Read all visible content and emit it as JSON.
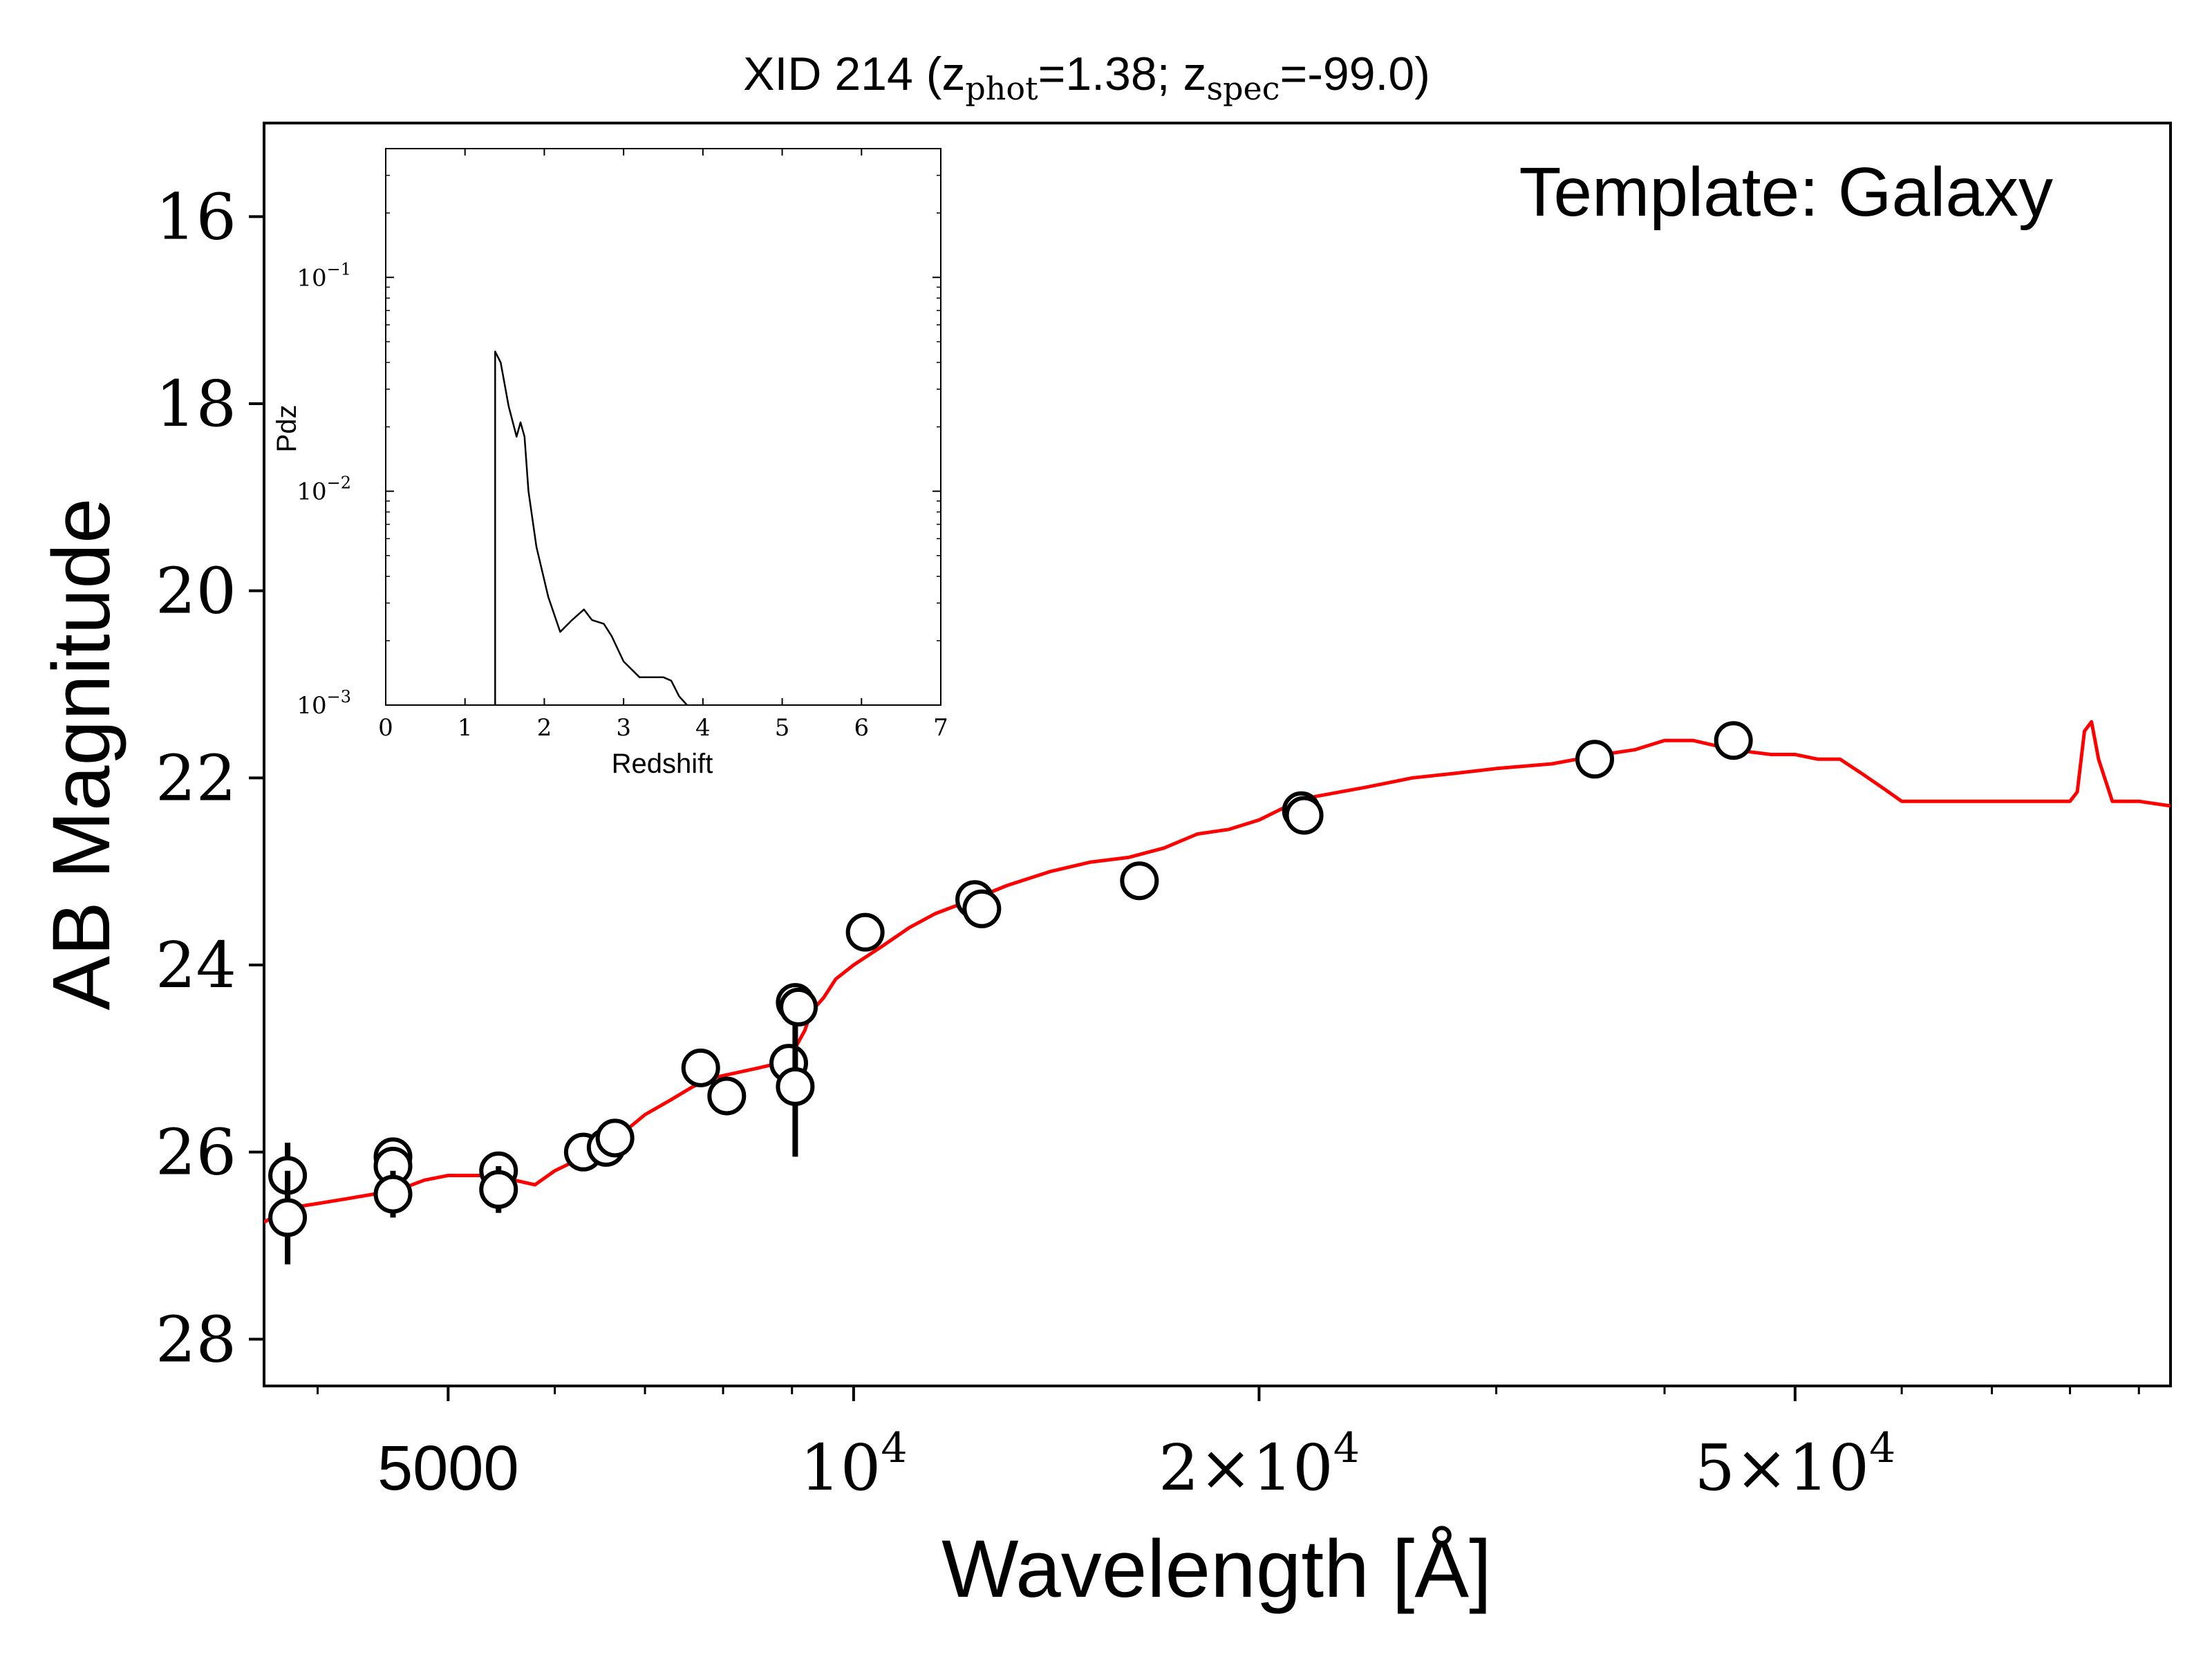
{
  "chart_data": [
    {
      "type": "line+scatter",
      "title": {
        "prefix": "XID 214 (z",
        "phot_sub": "phot",
        "phot_value": "=1.38; z",
        "spec_sub": "spec",
        "spec_value": "=-99.0)"
      },
      "xlabel": "Wavelength [Å]",
      "ylabel": "AB Magnitude",
      "annotation": "Template: Galaxy",
      "x_scale": "log",
      "xlim": [
        3650,
        95000
      ],
      "ylim": [
        28.5,
        15.0
      ],
      "y_inverted": true,
      "x_ticks": [
        {
          "value": 5000,
          "base": "5000",
          "sup": ""
        },
        {
          "value": 10000,
          "base": "10",
          "sup": "4"
        },
        {
          "value": 20000,
          "base": "2×10",
          "sup": "4"
        },
        {
          "value": 50000,
          "base": "5×10",
          "sup": "4"
        }
      ],
      "y_ticks": [
        16,
        18,
        20,
        22,
        24,
        26,
        28
      ],
      "colors": {
        "model": "#ff0000",
        "points": "#000000"
      },
      "series": [
        {
          "name": "",
          "kind": "line",
          "x": [
            3650,
            3800,
            4000,
            4200,
            4400,
            4600,
            4800,
            5000,
            5200,
            5400,
            5600,
            5800,
            6000,
            6200,
            6400,
            6600,
            6800,
            7000,
            7300,
            7600,
            7900,
            8200,
            8500,
            8800,
            9000,
            9200,
            9300,
            9500,
            9700,
            10000,
            10500,
            11000,
            11500,
            12000,
            12500,
            13000,
            14000,
            15000,
            16000,
            17000,
            18000,
            19000,
            20000,
            21000,
            22000,
            24000,
            26000,
            28000,
            30000,
            33000,
            36000,
            38000,
            40000,
            42000,
            45000,
            48000,
            50000,
            52000,
            54000,
            56000,
            58000,
            60000,
            65000,
            70000,
            75000,
            78000,
            80000,
            81000,
            82000,
            83000,
            84000,
            86000,
            90000,
            95000
          ],
          "y": [
            26.75,
            26.6,
            26.55,
            26.5,
            26.45,
            26.4,
            26.3,
            26.25,
            26.25,
            26.25,
            26.3,
            26.35,
            26.2,
            26.1,
            26.0,
            25.9,
            25.75,
            25.6,
            25.45,
            25.3,
            25.2,
            25.15,
            25.1,
            25.05,
            24.95,
            24.7,
            24.5,
            24.35,
            24.15,
            24.0,
            23.8,
            23.6,
            23.45,
            23.35,
            23.25,
            23.15,
            23.0,
            22.9,
            22.85,
            22.75,
            22.6,
            22.55,
            22.45,
            22.3,
            22.2,
            22.1,
            22.0,
            21.95,
            21.9,
            21.85,
            21.75,
            21.7,
            21.6,
            21.6,
            21.7,
            21.75,
            21.75,
            21.8,
            21.8,
            21.95,
            22.1,
            22.25,
            22.25,
            22.25,
            22.25,
            22.25,
            22.25,
            22.15,
            21.5,
            21.4,
            21.8,
            22.25,
            22.25,
            22.3
          ]
        },
        {
          "name": "",
          "kind": "scatter",
          "x": [
            3800,
            3800,
            4550,
            4550,
            4550,
            5450,
            5450,
            6300,
            6550,
            6650,
            7700,
            8050,
            8950,
            9050,
            9050,
            9100,
            10200,
            12300,
            12450,
            16300,
            21500,
            21600,
            35500,
            45000
          ],
          "y": [
            26.25,
            26.7,
            26.05,
            26.15,
            26.45,
            26.2,
            26.4,
            26.0,
            25.95,
            25.85,
            25.1,
            25.4,
            25.05,
            25.3,
            24.4,
            24.45,
            23.65,
            23.3,
            23.4,
            23.1,
            22.35,
            22.4,
            21.8,
            21.6
          ],
          "yerr": [
            0.35,
            0.5,
            0.0,
            0.0,
            0.25,
            0.1,
            0.25,
            0.0,
            0.0,
            0.1,
            0.0,
            0.15,
            0.0,
            0.75,
            0.0,
            0.1,
            0.0,
            0.0,
            0.0,
            0.0,
            0.15,
            0.2,
            0.0,
            0.0
          ]
        }
      ]
    },
    {
      "type": "line",
      "role": "inset",
      "xlabel": "Redshift",
      "ylabel": "Pdz",
      "x_scale": "linear",
      "y_scale": "log",
      "xlim": [
        0,
        7
      ],
      "ylim": [
        0.001,
        0.4
      ],
      "x_ticks": [
        0,
        1,
        2,
        3,
        4,
        5,
        6,
        7
      ],
      "y_ticks": [
        {
          "value": 0.1,
          "base": "10",
          "sup": "−1"
        },
        {
          "value": 0.01,
          "base": "10",
          "sup": "−2"
        },
        {
          "value": 0.001,
          "base": "10",
          "sup": "−3"
        }
      ],
      "series": [
        {
          "name": "",
          "x": [
            1.38,
            1.38,
            1.45,
            1.55,
            1.65,
            1.7,
            1.75,
            1.8,
            1.9,
            2.05,
            2.2,
            2.35,
            2.5,
            2.6,
            2.75,
            2.85,
            3.0,
            3.2,
            3.5,
            3.6,
            3.7,
            3.8
          ],
          "y": [
            0.001,
            0.045,
            0.04,
            0.025,
            0.018,
            0.021,
            0.018,
            0.01,
            0.0055,
            0.0032,
            0.0022,
            0.0025,
            0.0028,
            0.0025,
            0.0024,
            0.0021,
            0.0016,
            0.00135,
            0.00135,
            0.0013,
            0.0011,
            0.001
          ]
        }
      ]
    }
  ]
}
